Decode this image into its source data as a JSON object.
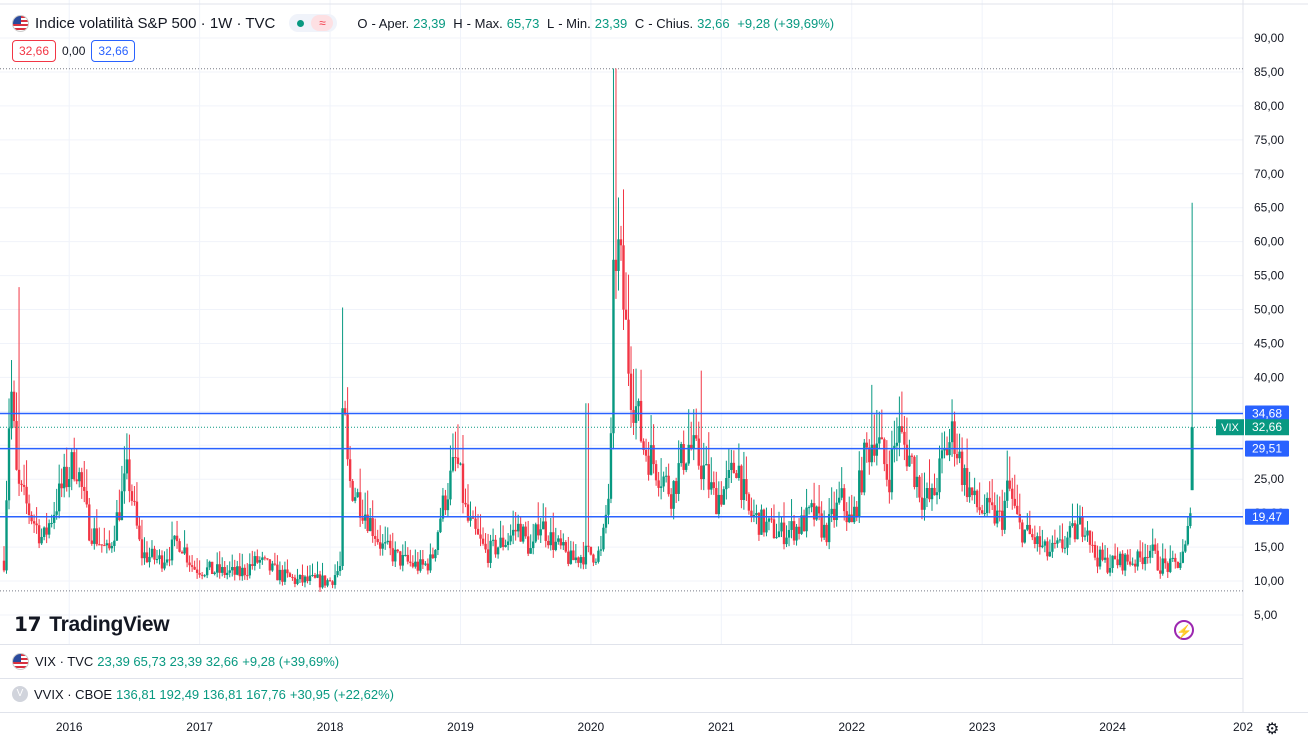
{
  "header": {
    "title": "Indice volatilità S&P 500 · 1W · TVC",
    "open_label": "O",
    "open_text": "Aper.",
    "open_value": "23,39",
    "high_label": "H",
    "high_text": "Max.",
    "high_value": "65,73",
    "low_label": "L",
    "low_text": "Min.",
    "low_value": "23,39",
    "close_label": "C",
    "close_text": "Chius.",
    "close_value": "32,66",
    "change": "+9,28 (+39,69%)"
  },
  "price_boxes": {
    "bid": "32,66",
    "spread": "0,00",
    "ask": "32,66"
  },
  "panes": [
    {
      "symbol": "VIX · TVC",
      "values": "23,39 65,73 23,39 32,66",
      "change": "+9,28 (+39,69%)"
    },
    {
      "symbol": "VVIX · CBOE",
      "values": "136,81 192,49 136,81 167,76",
      "change": "+30,95 (+22,62%)"
    }
  ],
  "ghost_flag_letter": "V",
  "logo_text": "TradingView",
  "y_axis": {
    "labels": [
      "90,00",
      "85,00",
      "80,00",
      "75,00",
      "70,00",
      "65,00",
      "60,00",
      "55,00",
      "50,00",
      "45,00",
      "40,00",
      "35,00",
      "30,00",
      "25,00",
      "20,00",
      "15,00",
      "10,00",
      "5,00"
    ],
    "min": 0,
    "max": 95
  },
  "x_axis": {
    "labels": [
      "2016",
      "2017",
      "2018",
      "2019",
      "2020",
      "2021",
      "2022",
      "2023",
      "2024",
      "202"
    ]
  },
  "horizontal_lines": [
    {
      "value": 34.68,
      "label": "34,68"
    },
    {
      "value": 29.51,
      "label": "29,51"
    },
    {
      "value": 19.47,
      "label": "19,47"
    }
  ],
  "dotted_levels": [
    85.47,
    8.56
  ],
  "last_price": {
    "symbol": "VIX",
    "label": "32,66",
    "value": 32.66
  },
  "colors": {
    "up": "#089981",
    "down": "#f23645",
    "line": "#2962ff",
    "grid": "#f0f3fa"
  },
  "chart_data": {
    "type": "candlestick",
    "x_start_year": 2015.5,
    "x_end_year": 2025.0,
    "anchors": [
      [
        2015.5,
        13
      ],
      [
        2015.55,
        40
      ],
      [
        2015.6,
        24
      ],
      [
        2015.7,
        20
      ],
      [
        2015.8,
        16
      ],
      [
        2015.95,
        24
      ],
      [
        2016.05,
        28
      ],
      [
        2016.15,
        18
      ],
      [
        2016.3,
        14
      ],
      [
        2016.45,
        26
      ],
      [
        2016.55,
        14
      ],
      [
        2016.7,
        13
      ],
      [
        2016.85,
        16
      ],
      [
        2016.95,
        12
      ],
      [
        2017.1,
        11.5
      ],
      [
        2017.3,
        11
      ],
      [
        2017.45,
        13
      ],
      [
        2017.6,
        11
      ],
      [
        2017.75,
        10
      ],
      [
        2017.9,
        10
      ],
      [
        2018.0,
        10
      ],
      [
        2018.08,
        12
      ],
      [
        2018.1,
        37
      ],
      [
        2018.14,
        25
      ],
      [
        2018.25,
        21
      ],
      [
        2018.4,
        15
      ],
      [
        2018.55,
        13
      ],
      [
        2018.7,
        12
      ],
      [
        2018.78,
        13
      ],
      [
        2018.85,
        20
      ],
      [
        2018.97,
        28
      ],
      [
        2019.05,
        19
      ],
      [
        2019.2,
        14
      ],
      [
        2019.35,
        16
      ],
      [
        2019.45,
        18
      ],
      [
        2019.55,
        14
      ],
      [
        2019.6,
        19
      ],
      [
        2019.7,
        16
      ],
      [
        2019.85,
        13
      ],
      [
        2019.95,
        14
      ],
      [
        2020.08,
        14
      ],
      [
        2020.15,
        25
      ],
      [
        2020.18,
        60
      ],
      [
        2020.22,
        57
      ],
      [
        2020.3,
        40
      ],
      [
        2020.4,
        30
      ],
      [
        2020.5,
        27
      ],
      [
        2020.62,
        23
      ],
      [
        2020.7,
        28
      ],
      [
        2020.75,
        30
      ],
      [
        2020.85,
        27
      ],
      [
        2020.95,
        22
      ],
      [
        2021.05,
        24
      ],
      [
        2021.12,
        28
      ],
      [
        2021.2,
        20
      ],
      [
        2021.35,
        18
      ],
      [
        2021.45,
        17
      ],
      [
        2021.6,
        18
      ],
      [
        2021.7,
        20
      ],
      [
        2021.8,
        17
      ],
      [
        2021.92,
        22
      ],
      [
        2022.0,
        18
      ],
      [
        2022.1,
        28
      ],
      [
        2022.18,
        32
      ],
      [
        2022.28,
        25
      ],
      [
        2022.35,
        32
      ],
      [
        2022.45,
        28
      ],
      [
        2022.55,
        22
      ],
      [
        2022.62,
        22
      ],
      [
        2022.7,
        28
      ],
      [
        2022.78,
        32
      ],
      [
        2022.85,
        26
      ],
      [
        2022.95,
        21
      ],
      [
        2023.05,
        20
      ],
      [
        2023.15,
        19
      ],
      [
        2023.2,
        24
      ],
      [
        2023.28,
        18
      ],
      [
        2023.4,
        16
      ],
      [
        2023.5,
        14
      ],
      [
        2023.6,
        15
      ],
      [
        2023.7,
        17
      ],
      [
        2023.8,
        19
      ],
      [
        2023.85,
        14
      ],
      [
        2023.95,
        12.5
      ],
      [
        2024.1,
        13
      ],
      [
        2024.2,
        13
      ],
      [
        2024.28,
        15
      ],
      [
        2024.35,
        12.5
      ],
      [
        2024.45,
        12
      ],
      [
        2024.52,
        13
      ],
      [
        2024.57,
        15
      ],
      [
        2024.6,
        23.39
      ]
    ],
    "spikes": [
      {
        "x": 2015.62,
        "high": 53.3
      },
      {
        "x": 2018.1,
        "high": 50.3
      },
      {
        "x": 2019.97,
        "high": 36.2
      },
      {
        "x": 2020.18,
        "high": 85.5
      },
      {
        "x": 2020.85,
        "high": 41
      },
      {
        "x": 2022.15,
        "high": 38.9
      }
    ],
    "last_candle": {
      "x": 2024.61,
      "open": 23.39,
      "high": 65.73,
      "low": 23.39,
      "close": 32.66
    }
  }
}
